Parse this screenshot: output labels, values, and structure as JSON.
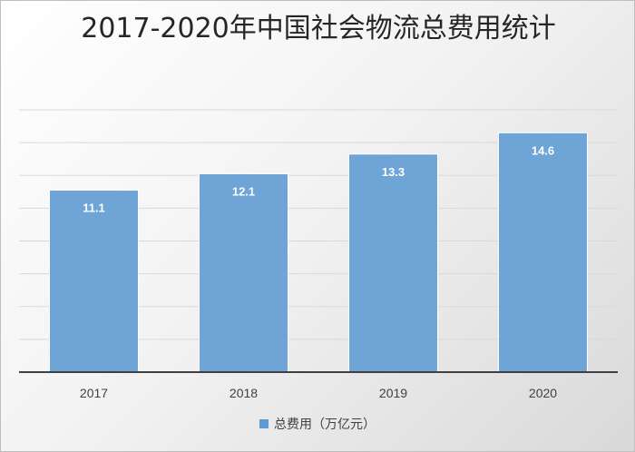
{
  "chart_data": {
    "type": "bar",
    "title": "2017-2020年中国社会物流总费用统计",
    "categories": [
      "2017",
      "2018",
      "2019",
      "2020"
    ],
    "series": [
      {
        "name": "总费用（万亿元）",
        "values": [
          11.1,
          12.1,
          13.3,
          14.6
        ],
        "color": "#5b9bd5"
      }
    ],
    "data_labels": [
      "11.1",
      "12.1",
      "13.3",
      "14.6"
    ],
    "ylim": [
      0,
      16
    ],
    "grid": true,
    "legend": "bottom",
    "colors": {
      "bar": "#6fa4d7",
      "grid": "#d9d9d9",
      "axis": "#404040",
      "label_text": "#ffffff"
    }
  }
}
